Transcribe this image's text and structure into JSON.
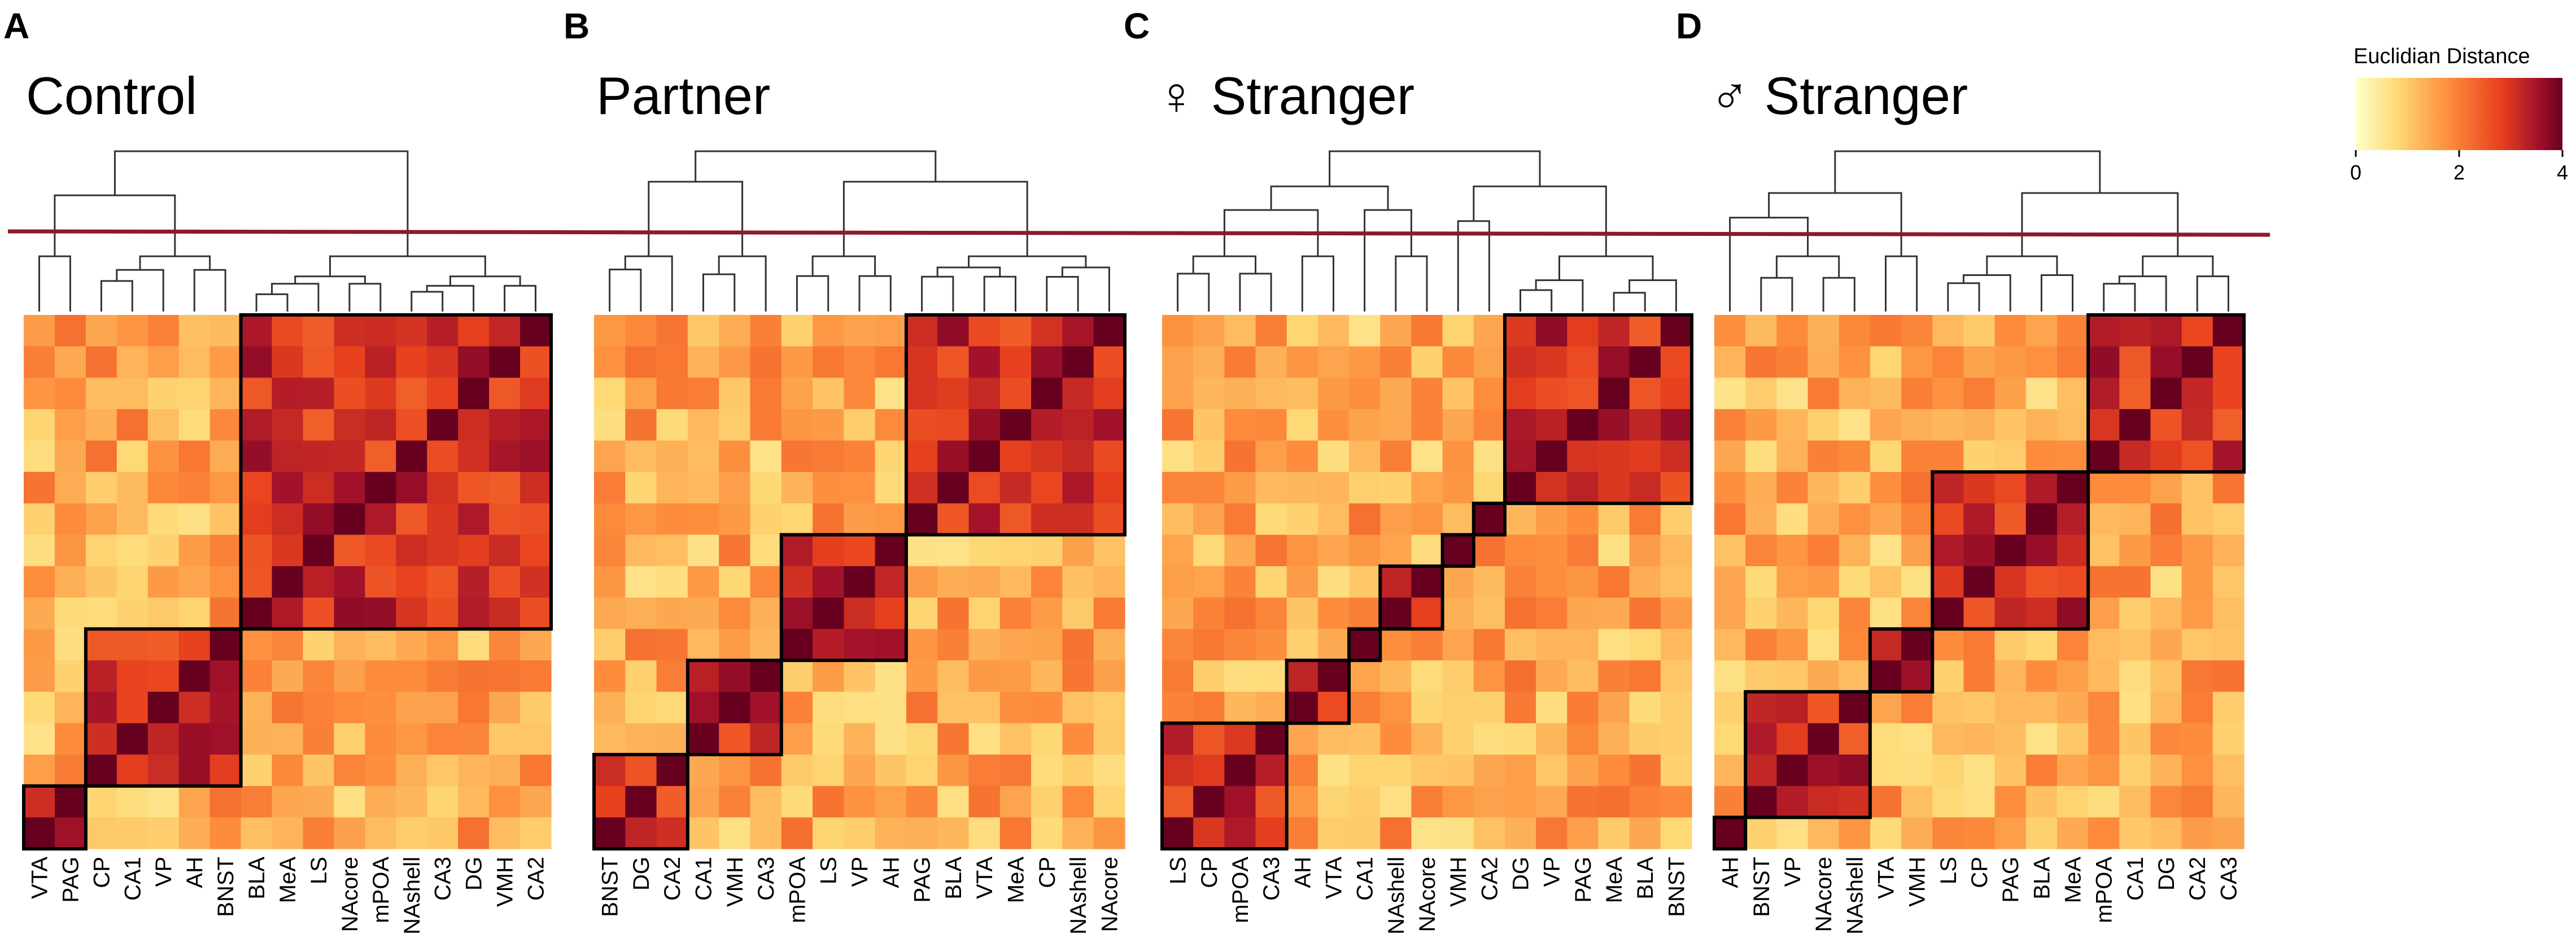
{
  "chart_data": [
    {
      "type": "heatmap",
      "panel_label": "A",
      "title": "Control",
      "regions": [
        "VTA",
        "PAG",
        "CP",
        "CA1",
        "VP",
        "AH",
        "BNST",
        "BLA",
        "MeA",
        "LS",
        "NAcore",
        "mPOA",
        "NAshell",
        "CA3",
        "DG",
        "VMH",
        "CA2"
      ],
      "clusters": [
        [
          "VTA",
          "PAG"
        ],
        [
          "CP",
          "CA1",
          "VP",
          "AH",
          "BNST"
        ],
        [
          "BLA",
          "MeA",
          "LS",
          "NAcore",
          "mPOA",
          "NAshell",
          "CA3",
          "DG",
          "VMH",
          "CA2"
        ]
      ],
      "value_label": "Euclidian Distance"
    },
    {
      "type": "heatmap",
      "panel_label": "B",
      "title": "Partner",
      "regions": [
        "BNST",
        "DG",
        "CA2",
        "CA1",
        "VMH",
        "CA3",
        "mPOA",
        "LS",
        "VP",
        "AH",
        "PAG",
        "BLA",
        "VTA",
        "MeA",
        "CP",
        "NAshell",
        "NAcore"
      ],
      "clusters": [
        [
          "BNST",
          "DG",
          "CA2"
        ],
        [
          "CA1",
          "VMH",
          "CA3"
        ],
        [
          "mPOA",
          "LS",
          "VP",
          "AH"
        ],
        [
          "PAG",
          "BLA",
          "VTA",
          "MeA",
          "CP",
          "NAshell",
          "NAcore"
        ]
      ],
      "value_label": "Euclidian Distance"
    },
    {
      "type": "heatmap",
      "panel_label": "C",
      "title": "♀ Stranger",
      "regions": [
        "LS",
        "CP",
        "mPOA",
        "CA3",
        "AH",
        "VTA",
        "CA1",
        "NAshell",
        "NAcore",
        "VMH",
        "CA2",
        "DG",
        "VP",
        "PAG",
        "MeA",
        "BLA",
        "BNST"
      ],
      "clusters": [
        [
          "LS",
          "CP",
          "mPOA",
          "CA3"
        ],
        [
          "AH",
          "VTA"
        ],
        [
          "CA1"
        ],
        [
          "NAshell",
          "NAcore"
        ],
        [
          "VMH"
        ],
        [
          "CA2"
        ],
        [
          "DG",
          "VP",
          "PAG",
          "MeA",
          "BLA",
          "BNST"
        ]
      ],
      "value_label": "Euclidian Distance"
    },
    {
      "type": "heatmap",
      "panel_label": "D",
      "title": "♂ Stranger",
      "regions": [
        "AH",
        "BNST",
        "VP",
        "NAcore",
        "NAshell",
        "VTA",
        "VMH",
        "LS",
        "CP",
        "PAG",
        "BLA",
        "MeA",
        "mPOA",
        "CA1",
        "DG",
        "CA2",
        "CA3"
      ],
      "clusters": [
        [
          "AH"
        ],
        [
          "BNST",
          "VP",
          "NAcore",
          "NAshell"
        ],
        [
          "VTA",
          "VMH"
        ],
        [
          "LS",
          "CP",
          "PAG",
          "BLA",
          "MeA"
        ],
        [
          "mPOA",
          "CA1",
          "DG",
          "CA2",
          "CA3"
        ]
      ],
      "value_label": "Euclidian Distance"
    }
  ],
  "legend": {
    "title": "Euclidian Distance",
    "ticks": [
      "0",
      "2",
      "4"
    ],
    "range": [
      0,
      4
    ],
    "colors": [
      "#ffffc9",
      "#fed976",
      "#fd8d3c",
      "#e8411e",
      "#a3122a",
      "#67001f"
    ]
  },
  "cut_line_color": "#8b1a2b"
}
